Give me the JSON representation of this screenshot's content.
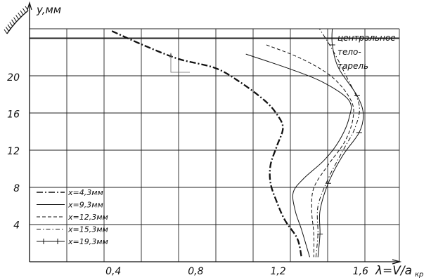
{
  "chart_data": {
    "type": "line",
    "ylabel": "y,мм",
    "xlabel": "λ=V/a",
    "xlabel_sub": "кр",
    "xlim": [
      0.0,
      1.75
    ],
    "ylim": [
      0,
      25
    ],
    "x_ticks": [
      {
        "value": 0.4,
        "label": "0,4"
      },
      {
        "value": 0.8,
        "label": "0,8"
      },
      {
        "value": 1.2,
        "label": "1,2"
      },
      {
        "value": 1.6,
        "label": "1,6"
      }
    ],
    "y_ticks": [
      {
        "value": 4,
        "label": "4"
      },
      {
        "value": 8,
        "label": "8"
      },
      {
        "value": 12,
        "label": "12"
      },
      {
        "value": 16,
        "label": "16"
      },
      {
        "value": 20,
        "label": "20"
      }
    ],
    "grid": true,
    "annotation": [
      "центральное",
      "тело-",
      "тарель"
    ],
    "legend_position": "bottom-left",
    "series": [
      {
        "name": "x=4,3мм",
        "style": "dash-dot-bold",
        "points": [
          [
            0.4,
            25
          ],
          [
            0.55,
            23.5
          ],
          [
            0.72,
            22
          ],
          [
            0.9,
            21
          ],
          [
            1.02,
            19.5
          ],
          [
            1.14,
            17.5
          ],
          [
            1.2,
            16
          ],
          [
            1.23,
            14.5
          ],
          [
            1.2,
            12.5
          ],
          [
            1.17,
            10.5
          ],
          [
            1.17,
            8.5
          ],
          [
            1.2,
            6.5
          ],
          [
            1.24,
            4.5
          ],
          [
            1.3,
            2.5
          ],
          [
            1.32,
            0.5
          ]
        ]
      },
      {
        "name": "x=9,3мм",
        "style": "solid",
        "points": [
          [
            1.05,
            22.5
          ],
          [
            1.25,
            21
          ],
          [
            1.42,
            19.5
          ],
          [
            1.55,
            17.5
          ],
          [
            1.55,
            15.5
          ],
          [
            1.5,
            13
          ],
          [
            1.43,
            11
          ],
          [
            1.33,
            9
          ],
          [
            1.28,
            7.5
          ],
          [
            1.29,
            5.5
          ],
          [
            1.32,
            3.5
          ],
          [
            1.36,
            0.5
          ]
        ]
      },
      {
        "name": "x=12,3мм",
        "style": "dashed",
        "points": [
          [
            1.15,
            23.5
          ],
          [
            1.32,
            22
          ],
          [
            1.47,
            20
          ],
          [
            1.56,
            17.5
          ],
          [
            1.57,
            15.5
          ],
          [
            1.53,
            13
          ],
          [
            1.45,
            10.5
          ],
          [
            1.38,
            8
          ],
          [
            1.37,
            5.5
          ],
          [
            1.38,
            3
          ],
          [
            1.38,
            0.5
          ]
        ]
      },
      {
        "name": "x=15,3мм",
        "style": "dash-dot",
        "points": [
          [
            1.4,
            25.5
          ],
          [
            1.47,
            23
          ],
          [
            1.54,
            20
          ],
          [
            1.6,
            17
          ],
          [
            1.58,
            14.5
          ],
          [
            1.52,
            12
          ],
          [
            1.45,
            9
          ],
          [
            1.4,
            6
          ],
          [
            1.4,
            3
          ],
          [
            1.39,
            0.5
          ]
        ]
      },
      {
        "name": "x=19,3мм",
        "style": "solid-cross",
        "points": [
          [
            1.47,
            25.5
          ],
          [
            1.47,
            23.5
          ],
          [
            1.5,
            21
          ],
          [
            1.59,
            18
          ],
          [
            1.62,
            16
          ],
          [
            1.6,
            14
          ],
          [
            1.52,
            11.5
          ],
          [
            1.45,
            8.5
          ],
          [
            1.41,
            5.5
          ],
          [
            1.41,
            3
          ],
          [
            1.4,
            0.5
          ]
        ]
      }
    ]
  }
}
